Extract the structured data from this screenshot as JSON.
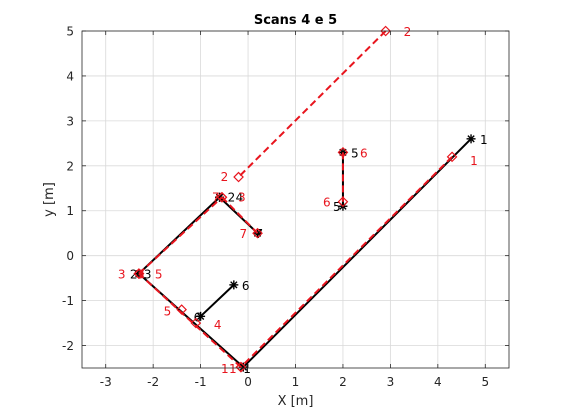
{
  "chart_data": {
    "type": "line",
    "title": "Scans 4 e 5",
    "xlabel": "X [m]",
    "ylabel": "y [m]",
    "xlim": [
      -3.5,
      5.5
    ],
    "ylim": [
      -2.5,
      5.0
    ],
    "xticks": [
      -3,
      -2,
      -1,
      0,
      1,
      2,
      3,
      4,
      5
    ],
    "yticks": [
      -2,
      -1,
      0,
      1,
      2,
      3,
      4,
      5
    ],
    "xtick_labels": [
      "-3",
      "-2",
      "-1",
      "0",
      "1",
      "2",
      "3",
      "4",
      "5"
    ],
    "ytick_labels": [
      "-2",
      "-1",
      "0",
      "1",
      "2",
      "3",
      "4",
      "5"
    ],
    "grid": true,
    "colors": {
      "scan_black": "#000000",
      "scan_red": "#e8151e",
      "grid": "#d9d9d9",
      "axis": "#262626"
    },
    "series": [
      {
        "marker": "asterisk",
        "color": "#000000",
        "points": [
          {
            "x": 4.7,
            "y": 2.6,
            "label": "1"
          },
          {
            "x": -0.1,
            "y": -2.48,
            "label": "1"
          },
          {
            "x": -1.0,
            "y": -1.35,
            "label": "6"
          },
          {
            "x": -0.3,
            "y": -0.65,
            "label": "6"
          },
          {
            "x": -2.3,
            "y": -0.4,
            "label": "2"
          },
          {
            "x": -2.3,
            "y": -0.4,
            "label": "3"
          },
          {
            "x": -0.6,
            "y": 1.3,
            "label": "2"
          },
          {
            "x": -0.6,
            "y": 1.3,
            "label": "4"
          },
          {
            "x": 0.2,
            "y": 0.5,
            "label": "7"
          },
          {
            "x": 2.0,
            "y": 2.3,
            "label": "5"
          },
          {
            "x": 2.0,
            "y": 1.1,
            "label": "5"
          }
        ],
        "segments": [
          [
            [
              4.7,
              2.6
            ],
            [
              -0.1,
              -2.48
            ]
          ],
          [
            [
              -0.1,
              -2.48
            ],
            [
              -2.3,
              -0.4
            ]
          ],
          [
            [
              -2.3,
              -0.4
            ],
            [
              -0.6,
              1.3
            ]
          ],
          [
            [
              -0.6,
              1.3
            ],
            [
              0.2,
              0.5
            ]
          ],
          [
            [
              -1.0,
              -1.35
            ],
            [
              -0.3,
              -0.65
            ]
          ],
          [
            [
              2.0,
              2.3
            ],
            [
              2.0,
              1.1
            ]
          ]
        ]
      },
      {
        "marker": "diamond",
        "color": "#e8151e",
        "points": [
          {
            "x": 4.3,
            "y": 2.2,
            "label": "1"
          },
          {
            "x": 2.9,
            "y": 5.0,
            "label": "2"
          },
          {
            "x": -0.2,
            "y": 1.75,
            "label": "2"
          },
          {
            "x": -0.15,
            "y": -2.48,
            "label": "1"
          },
          {
            "x": -0.15,
            "y": -2.48,
            "label": "1"
          },
          {
            "x": -1.4,
            "y": -1.2,
            "label": "5"
          },
          {
            "x": -1.1,
            "y": -1.5,
            "label": "4"
          },
          {
            "x": -2.3,
            "y": -0.4,
            "label": "3"
          },
          {
            "x": -2.3,
            "y": -0.4,
            "label": "3"
          },
          {
            "x": -2.3,
            "y": -0.4,
            "label": "5"
          },
          {
            "x": -0.55,
            "y": 1.3,
            "label": "3"
          },
          {
            "x": -0.55,
            "y": 1.3,
            "label": "7"
          },
          {
            "x": 0.2,
            "y": 0.5,
            "label": "7"
          },
          {
            "x": 2.0,
            "y": 2.3,
            "label": "6"
          },
          {
            "x": 2.0,
            "y": 1.2,
            "label": "6"
          }
        ],
        "segments": [
          [
            [
              2.9,
              5.0
            ],
            [
              -0.2,
              1.75
            ]
          ],
          [
            [
              4.3,
              2.2
            ],
            [
              -0.15,
              -2.48
            ]
          ],
          [
            [
              -0.15,
              -2.48
            ],
            [
              -2.3,
              -0.4
            ]
          ],
          [
            [
              -2.3,
              -0.4
            ],
            [
              -0.55,
              1.3
            ]
          ],
          [
            [
              -0.55,
              1.3
            ],
            [
              0.2,
              0.5
            ]
          ],
          [
            [
              2.0,
              2.3
            ],
            [
              2.0,
              1.2
            ]
          ]
        ]
      }
    ]
  }
}
